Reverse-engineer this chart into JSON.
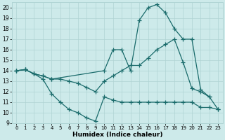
{
  "xlabel": "Humidex (Indice chaleur)",
  "background_color": "#cdeaea",
  "grid_color": "#b0d4d4",
  "line_color": "#1a6b6b",
  "xlim": [
    -0.5,
    23.5
  ],
  "ylim": [
    9,
    20.5
  ],
  "yticks": [
    9,
    10,
    11,
    12,
    13,
    14,
    15,
    16,
    17,
    18,
    19,
    20
  ],
  "xticks": [
    0,
    1,
    2,
    3,
    4,
    5,
    6,
    7,
    8,
    9,
    10,
    11,
    12,
    13,
    14,
    15,
    16,
    17,
    18,
    19,
    20,
    21,
    22,
    23
  ],
  "lineA_x": [
    0,
    1,
    2,
    3,
    4,
    10,
    11,
    12,
    13,
    14,
    15,
    16,
    17,
    18,
    19,
    20,
    21,
    22
  ],
  "lineA_y": [
    14,
    14.1,
    13.7,
    13.5,
    13.2,
    14.0,
    16.0,
    16.0,
    14.0,
    18.8,
    20.0,
    20.3,
    19.5,
    18.0,
    17.0,
    17.0,
    12.2,
    11.5
  ],
  "lineB_x": [
    0,
    1,
    2,
    3,
    4,
    5,
    6,
    7,
    8,
    9,
    10,
    11,
    12,
    13,
    14,
    15,
    16,
    17,
    18,
    19,
    20,
    21,
    22,
    23
  ],
  "lineB_y": [
    14,
    14.1,
    13.7,
    13.5,
    13.2,
    13.2,
    13.0,
    12.8,
    12.4,
    12.0,
    13.0,
    13.5,
    14.0,
    14.5,
    14.5,
    15.2,
    16.0,
    16.5,
    17.0,
    14.8,
    12.3,
    12.0,
    11.5,
    10.3
  ],
  "lineC_x": [
    0,
    1,
    2,
    3,
    4,
    5,
    6,
    7,
    8,
    9,
    10,
    11,
    12,
    13,
    14,
    15,
    16,
    17,
    18,
    19,
    20,
    21,
    22,
    23
  ],
  "lineC_y": [
    14,
    14.1,
    13.7,
    13.2,
    11.8,
    11.0,
    10.3,
    10.0,
    9.5,
    9.2,
    11.5,
    11.2,
    11.0,
    11.0,
    11.0,
    11.0,
    11.0,
    11.0,
    11.0,
    11.0,
    11.0,
    10.5,
    10.5,
    10.3
  ]
}
